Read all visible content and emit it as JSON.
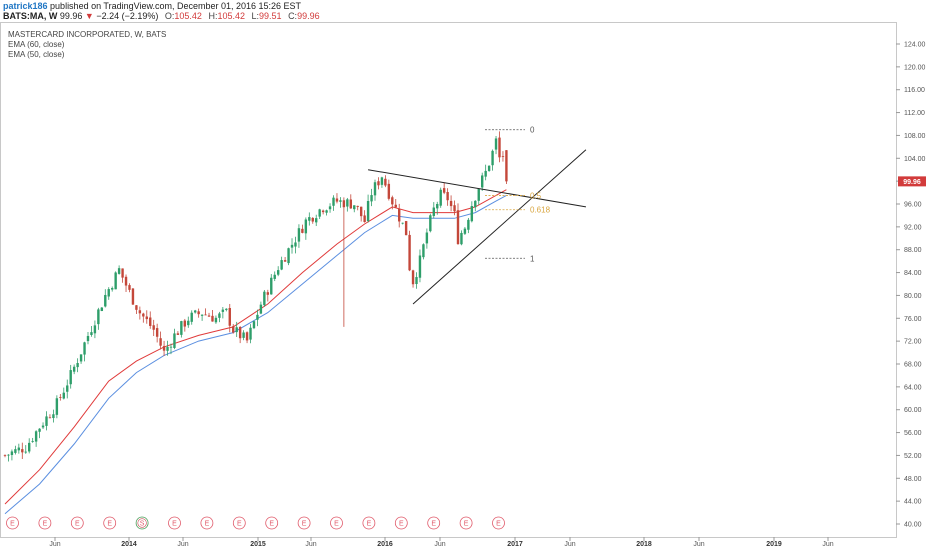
{
  "header": {
    "username": "patrick186",
    "published_text": "published on TradingView.com, December 01, 2016 15:26 EST",
    "symbol": "BATS:MA, W",
    "last_price": "99.96",
    "change_arrow": "▼",
    "change": "−2.24 (−2.19%)",
    "open_label": "O:",
    "open_value": "105.42",
    "high_label": "H:",
    "high_value": "105.42",
    "low_label": "L:",
    "low_value": "99.51",
    "close_label": "C:",
    "close_value": "99.96"
  },
  "legend": {
    "title": "MASTERCARD INCORPORATED, W, BATS",
    "ema1": "EMA (60, close)",
    "ema2": "EMA (50, close)"
  },
  "chart_data": {
    "type": "candlestick",
    "ylim": [
      39,
      127
    ],
    "y_ticks": [
      "40.00",
      "44.00",
      "48.00",
      "52.00",
      "56.00",
      "60.00",
      "64.00",
      "68.00",
      "72.00",
      "76.00",
      "80.00",
      "84.00",
      "88.00",
      "92.00",
      "96.00",
      "100.00",
      "104.00",
      "108.00",
      "112.00",
      "116.00",
      "120.00",
      "124.00"
    ],
    "x_ticks": [
      {
        "label": "Jun",
        "bold": false
      },
      {
        "label": "2014",
        "bold": true
      },
      {
        "label": "Jun",
        "bold": false
      },
      {
        "label": "2015",
        "bold": true
      },
      {
        "label": "Jun",
        "bold": false
      },
      {
        "label": "2016",
        "bold": true
      },
      {
        "label": "Jun",
        "bold": false
      },
      {
        "label": "2017",
        "bold": true
      },
      {
        "label": "Jun",
        "bold": false
      },
      {
        "label": "2018",
        "bold": true
      },
      {
        "label": "Jun",
        "bold": false
      },
      {
        "label": "2019",
        "bold": true
      },
      {
        "label": "Jun",
        "bold": false
      }
    ],
    "price_path": [
      [
        0,
        52.0
      ],
      [
        6,
        53.5
      ],
      [
        10,
        57.0
      ],
      [
        15,
        61.0
      ],
      [
        19,
        66.0
      ],
      [
        24,
        73.0
      ],
      [
        29,
        80.0
      ],
      [
        33,
        84.5
      ],
      [
        36,
        80.5
      ],
      [
        39,
        77.0
      ],
      [
        43,
        74.0
      ],
      [
        46,
        70.0
      ],
      [
        49,
        73.0
      ],
      [
        53,
        76.0
      ],
      [
        57,
        77.0
      ],
      [
        61,
        76.0
      ],
      [
        64,
        77.0
      ],
      [
        66,
        74.0
      ],
      [
        70,
        72.0
      ],
      [
        74,
        78.5
      ],
      [
        79,
        85.0
      ],
      [
        83,
        89.0
      ],
      [
        87,
        93.0
      ],
      [
        92,
        95.5
      ],
      [
        96,
        96.5
      ],
      [
        101,
        96.0
      ],
      [
        104,
        93.0
      ],
      [
        106,
        98.0
      ],
      [
        109,
        101.0
      ],
      [
        112,
        96.5
      ],
      [
        116,
        91.0
      ],
      [
        117,
        85.0
      ],
      [
        118,
        82.5
      ],
      [
        120,
        86.0
      ],
      [
        122,
        91.0
      ],
      [
        124,
        95.0
      ],
      [
        126,
        97.5
      ],
      [
        128,
        97.0
      ],
      [
        130,
        94.0
      ],
      [
        131,
        90.0
      ],
      [
        133,
        92.0
      ],
      [
        135,
        96.0
      ],
      [
        137,
        99.0
      ],
      [
        139,
        101.5
      ],
      [
        141,
        105.0
      ],
      [
        142,
        107.0
      ],
      [
        143,
        104.0
      ],
      [
        144,
        104.5
      ],
      [
        145,
        99.96
      ]
    ],
    "ema_60": [
      [
        0,
        41.8
      ],
      [
        10,
        47.0
      ],
      [
        20,
        54.0
      ],
      [
        30,
        62.0
      ],
      [
        38,
        66.5
      ],
      [
        46,
        69.5
      ],
      [
        56,
        72.0
      ],
      [
        66,
        73.5
      ],
      [
        76,
        77.0
      ],
      [
        86,
        82.0
      ],
      [
        96,
        87.0
      ],
      [
        104,
        91.0
      ],
      [
        112,
        94.0
      ],
      [
        118,
        93.5
      ],
      [
        124,
        93.5
      ],
      [
        130,
        93.5
      ],
      [
        136,
        94.5
      ],
      [
        142,
        96.5
      ],
      [
        145,
        97.5
      ]
    ],
    "ema_50": [
      [
        0,
        43.5
      ],
      [
        10,
        49.5
      ],
      [
        20,
        57.0
      ],
      [
        30,
        65.0
      ],
      [
        38,
        68.5
      ],
      [
        46,
        71.0
      ],
      [
        56,
        73.0
      ],
      [
        66,
        74.5
      ],
      [
        76,
        78.5
      ],
      [
        86,
        84.0
      ],
      [
        96,
        89.0
      ],
      [
        104,
        92.5
      ],
      [
        112,
        95.5
      ],
      [
        118,
        94.5
      ],
      [
        124,
        94.5
      ],
      [
        130,
        94.5
      ],
      [
        136,
        95.5
      ],
      [
        142,
        97.5
      ],
      [
        145,
        98.5
      ]
    ],
    "trendlines": [
      {
        "name": "descending-resistance",
        "from": [
          105,
          102.0
        ],
        "to": [
          168,
          95.5
        ]
      },
      {
        "name": "ascending-support",
        "from": [
          118,
          78.5
        ],
        "to": [
          168,
          105.5
        ]
      }
    ],
    "fib_levels": [
      {
        "label": "0",
        "price": 109.0,
        "color": "#555555"
      },
      {
        "label": "0.5",
        "price": 97.5,
        "color": "#d9a640"
      },
      {
        "label": "0.618",
        "price": 95.0,
        "color": "#d9a640"
      },
      {
        "label": "1",
        "price": 86.5,
        "color": "#555555"
      }
    ],
    "last_price_tag": {
      "value": "99.96",
      "price": 99.96,
      "color": "#d23b3b"
    },
    "earnings_markers": [
      "E",
      "E",
      "E",
      "E",
      "S",
      "E",
      "E",
      "E",
      "E",
      "E",
      "E",
      "E",
      "E",
      "E",
      "E",
      "E"
    ]
  }
}
